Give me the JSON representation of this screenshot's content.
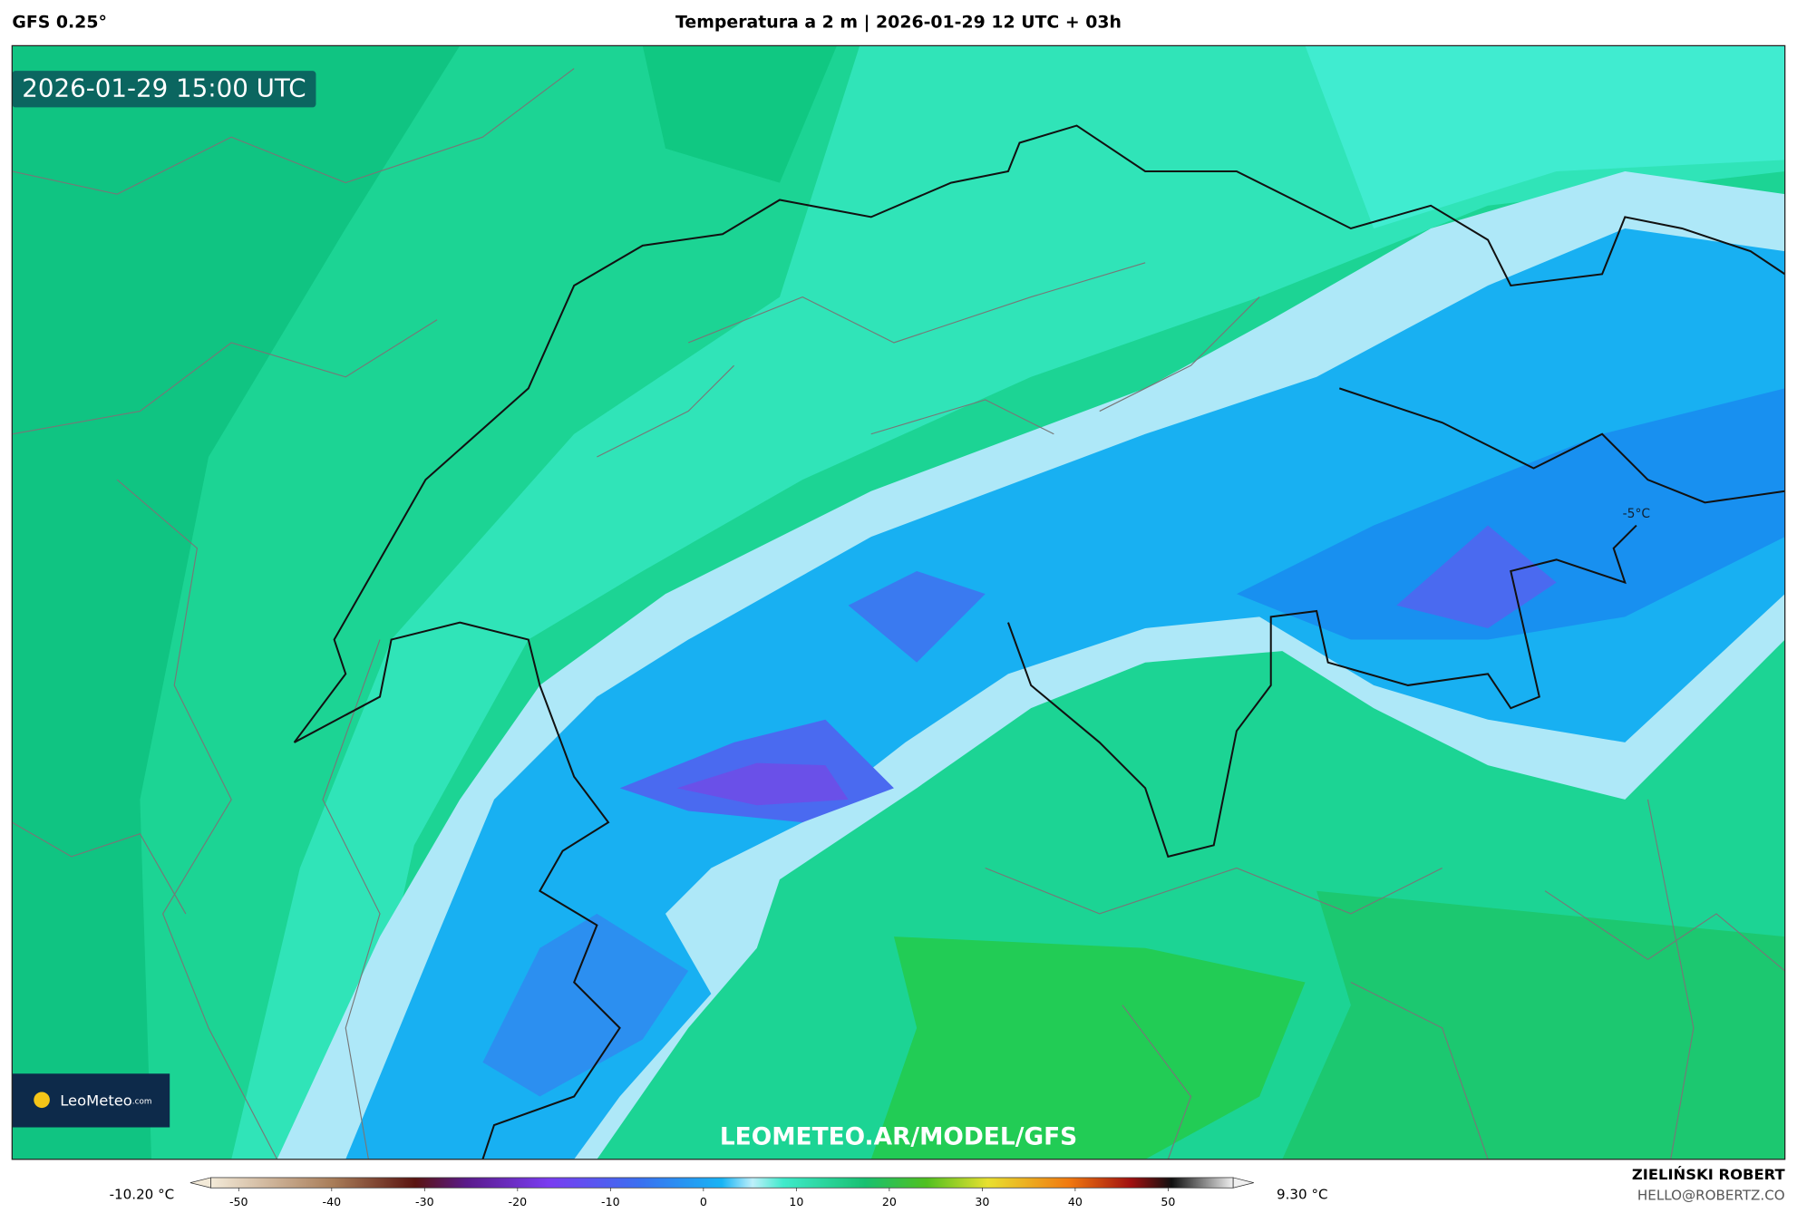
{
  "header": {
    "model": "GFS 0.25°",
    "title": "Temperatura a 2 m | 2026-01-29 12 UTC + 03h"
  },
  "map": {
    "timestamp": "2026-01-29 15:00 UTC",
    "contour_label": "-5°C",
    "watermark": "LEOMETEO.AR/MODEL/GFS",
    "logo": {
      "name": "LeoMeteo",
      "suffix": ".com"
    }
  },
  "colorbar": {
    "min_label": "-10.20 °C",
    "max_label": "9.30 °C",
    "xlim": [
      -53,
      57
    ],
    "xticks": [
      -50,
      -40,
      -30,
      -20,
      -10,
      0,
      10,
      20,
      30,
      40,
      50
    ]
  },
  "credits": {
    "author": "ZIELIŃSKI ROBERT",
    "email": "HELLO@ROBERTZ.CO"
  }
}
